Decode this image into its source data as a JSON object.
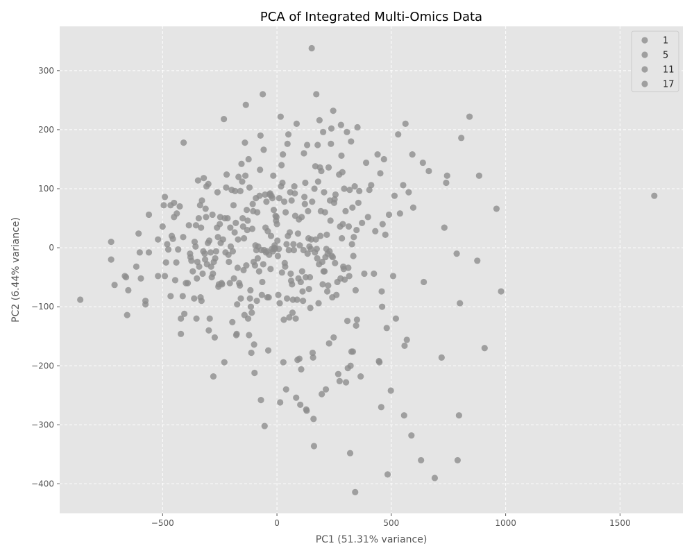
{
  "chart_data": {
    "type": "scatter",
    "title": "PCA of Integrated Multi-Omics Data",
    "xlabel": "PC1 (51.31% variance)",
    "ylabel": "PC2 (6.44% variance)",
    "xlim": [
      -950,
      1775
    ],
    "ylim": [
      -450,
      375
    ],
    "xticks": [
      -500,
      0,
      500,
      1000,
      1500
    ],
    "xtick_labels": [
      "−500",
      "0",
      "500",
      "1000",
      "1500"
    ],
    "yticks": [
      -400,
      -300,
      -200,
      -100,
      0,
      100,
      200,
      300
    ],
    "ytick_labels": [
      "−400",
      "−300",
      "−200",
      "−100",
      "0",
      "100",
      "200",
      "300"
    ],
    "grid": true,
    "legend_position": "top-right",
    "background_color": "#e5e5e5",
    "grid_color": "#ffffff",
    "point_color": "#8c8c8c",
    "legend": [
      "1",
      "5",
      "11",
      "17"
    ],
    "points": [
      [
        -860,
        -88
      ],
      [
        -725,
        10
      ],
      [
        -725,
        -20
      ],
      [
        -710,
        -63
      ],
      [
        -665,
        -48
      ],
      [
        -660,
        -50
      ],
      [
        -655,
        -114
      ],
      [
        -650,
        -72
      ],
      [
        -615,
        -32
      ],
      [
        -600,
        -8
      ],
      [
        -605,
        24
      ],
      [
        -595,
        -52
      ],
      [
        -575,
        -90
      ],
      [
        -575,
        -96
      ],
      [
        -560,
        56
      ],
      [
        -560,
        -8
      ],
      [
        -520,
        14
      ],
      [
        -520,
        -48
      ],
      [
        -500,
        36
      ],
      [
        -495,
        72
      ],
      [
        -490,
        86
      ],
      [
        -490,
        -48
      ],
      [
        -485,
        -25
      ],
      [
        -480,
        6
      ],
      [
        -475,
        -3
      ],
      [
        -465,
        -82
      ],
      [
        -465,
        72
      ],
      [
        -460,
        20
      ],
      [
        -455,
        15
      ],
      [
        -450,
        76
      ],
      [
        -450,
        52
      ],
      [
        -445,
        -55
      ],
      [
        -440,
        -25
      ],
      [
        -438,
        58
      ],
      [
        -432,
        -3
      ],
      [
        -425,
        70
      ],
      [
        -420,
        -120
      ],
      [
        -420,
        -146
      ],
      [
        -412,
        -82
      ],
      [
        -410,
        18
      ],
      [
        -408,
        178
      ],
      [
        -405,
        -112
      ],
      [
        -398,
        -60
      ],
      [
        -390,
        -60
      ],
      [
        -385,
        38
      ],
      [
        -380,
        -10
      ],
      [
        -378,
        -16
      ],
      [
        -374,
        -22
      ],
      [
        -368,
        -40
      ],
      [
        -362,
        -86
      ],
      [
        -360,
        10
      ],
      [
        -356,
        2
      ],
      [
        -354,
        38
      ],
      [
        -352,
        -120
      ],
      [
        -350,
        -52
      ],
      [
        -348,
        -24
      ],
      [
        -345,
        114
      ],
      [
        -342,
        50
      ],
      [
        -340,
        -32
      ],
      [
        -336,
        72
      ],
      [
        -334,
        -84
      ],
      [
        -332,
        34
      ],
      [
        -330,
        -90
      ],
      [
        -328,
        80
      ],
      [
        -325,
        -44
      ],
      [
        -322,
        -6
      ],
      [
        -320,
        118
      ],
      [
        -316,
        -10
      ],
      [
        -314,
        -20
      ],
      [
        -312,
        66
      ],
      [
        -310,
        52
      ],
      [
        -308,
        104
      ],
      [
        -306,
        -28
      ],
      [
        -302,
        8
      ],
      [
        -300,
        108
      ],
      [
        -298,
        -140
      ],
      [
        -296,
        12
      ],
      [
        -294,
        -120
      ],
      [
        -290,
        -8
      ],
      [
        -288,
        -32
      ],
      [
        -285,
        -50
      ],
      [
        -282,
        56
      ],
      [
        -280,
        -44
      ],
      [
        -278,
        -218
      ],
      [
        -276,
        -24
      ],
      [
        -272,
        -152
      ],
      [
        -270,
        -18
      ],
      [
        -266,
        -6
      ],
      [
        -262,
        34
      ],
      [
        -260,
        94
      ],
      [
        -258,
        18
      ],
      [
        -256,
        -66
      ],
      [
        -254,
        -62
      ],
      [
        -250,
        40
      ],
      [
        -248,
        52
      ],
      [
        -246,
        8
      ],
      [
        -242,
        -60
      ],
      [
        -240,
        -62
      ],
      [
        -236,
        14
      ],
      [
        -232,
        218
      ],
      [
        -230,
        -194
      ],
      [
        -228,
        50
      ],
      [
        -225,
        -8
      ],
      [
        -222,
        102
      ],
      [
        -220,
        124
      ],
      [
        -216,
        50
      ],
      [
        -212,
        -12
      ],
      [
        -210,
        -24
      ],
      [
        -206,
        -60
      ],
      [
        -204,
        34
      ],
      [
        -202,
        2
      ],
      [
        -198,
        98
      ],
      [
        -195,
        -126
      ],
      [
        -193,
        -6
      ],
      [
        -190,
        72
      ],
      [
        -188,
        -52
      ],
      [
        -185,
        26
      ],
      [
        -183,
        96
      ],
      [
        -180,
        42
      ],
      [
        -178,
        -148
      ],
      [
        -176,
        -146
      ],
      [
        -174,
        -96
      ],
      [
        -172,
        -34
      ],
      [
        -170,
        14
      ],
      [
        -168,
        120
      ],
      [
        -165,
        -60
      ],
      [
        -162,
        -64
      ],
      [
        -160,
        96
      ],
      [
        -158,
        -86
      ],
      [
        -155,
        142
      ],
      [
        -152,
        112
      ],
      [
        -150,
        50
      ],
      [
        -148,
        36
      ],
      [
        -146,
        -38
      ],
      [
        -144,
        16
      ],
      [
        -142,
        -114
      ],
      [
        -140,
        178
      ],
      [
        -138,
        122
      ],
      [
        -136,
        242
      ],
      [
        -134,
        -30
      ],
      [
        -132,
        64
      ],
      [
        -130,
        30
      ],
      [
        -128,
        46
      ],
      [
        -126,
        -120
      ],
      [
        -124,
        150
      ],
      [
        -122,
        -148
      ],
      [
        -120,
        102
      ],
      [
        -118,
        -86
      ],
      [
        -116,
        -72
      ],
      [
        -114,
        -100
      ],
      [
        -112,
        -178
      ],
      [
        -110,
        -110
      ],
      [
        -108,
        32
      ],
      [
        -106,
        74
      ],
      [
        -104,
        62
      ],
      [
        -102,
        -24
      ],
      [
        -100,
        -164
      ],
      [
        -98,
        -212
      ],
      [
        -96,
        -30
      ],
      [
        -94,
        4
      ],
      [
        -92,
        84
      ],
      [
        -90,
        -4
      ],
      [
        -88,
        -90
      ],
      [
        -86,
        60
      ],
      [
        -84,
        -18
      ],
      [
        -82,
        2
      ],
      [
        -78,
        -40
      ],
      [
        -76,
        88
      ],
      [
        -74,
        132
      ],
      [
        -72,
        190
      ],
      [
        -70,
        -258
      ],
      [
        -68,
        -4
      ],
      [
        -66,
        -80
      ],
      [
        -64,
        -58
      ],
      [
        -62,
        260
      ],
      [
        -60,
        -28
      ],
      [
        -58,
        166
      ],
      [
        -56,
        -4
      ],
      [
        -54,
        -302
      ],
      [
        -52,
        90
      ],
      [
        -50,
        34
      ],
      [
        -48,
        -8
      ],
      [
        -46,
        78
      ],
      [
        -44,
        -6
      ],
      [
        -42,
        -84
      ],
      [
        -40,
        28
      ],
      [
        -38,
        -174
      ],
      [
        -36,
        -84
      ],
      [
        -34,
        -12
      ],
      [
        -32,
        90
      ],
      [
        -30,
        92
      ],
      [
        -28,
        -36
      ],
      [
        -26,
        20
      ],
      [
        -24,
        88
      ],
      [
        -22,
        -2
      ],
      [
        -20,
        84
      ],
      [
        -18,
        -6
      ],
      [
        -16,
        122
      ],
      [
        -14,
        64
      ],
      [
        -12,
        0
      ],
      [
        -10,
        4
      ],
      [
        -8,
        -2
      ],
      [
        -6,
        54
      ],
      [
        -4,
        46
      ],
      [
        -2,
        52
      ],
      [
        0,
        40
      ],
      [
        2,
        12
      ],
      [
        4,
        -14
      ],
      [
        6,
        -80
      ],
      [
        8,
        -2
      ],
      [
        10,
        84
      ],
      [
        12,
        -94
      ],
      [
        14,
        -262
      ],
      [
        16,
        222
      ],
      [
        18,
        104
      ],
      [
        20,
        140
      ],
      [
        22,
        -42
      ],
      [
        24,
        110
      ],
      [
        26,
        158
      ],
      [
        28,
        -194
      ],
      [
        30,
        -122
      ],
      [
        32,
        78
      ],
      [
        34,
        -26
      ],
      [
        36,
        -32
      ],
      [
        38,
        60
      ],
      [
        40,
        -240
      ],
      [
        42,
        6
      ],
      [
        44,
        -86
      ],
      [
        46,
        176
      ],
      [
        48,
        20
      ],
      [
        50,
        192
      ],
      [
        52,
        -4
      ],
      [
        54,
        -118
      ],
      [
        56,
        26
      ],
      [
        58,
        94
      ],
      [
        60,
        -44
      ],
      [
        62,
        -56
      ],
      [
        64,
        80
      ],
      [
        66,
        -62
      ],
      [
        68,
        -110
      ],
      [
        70,
        -88
      ],
      [
        72,
        6
      ],
      [
        74,
        -4
      ],
      [
        76,
        104
      ],
      [
        78,
        92
      ],
      [
        80,
        54
      ],
      [
        82,
        -120
      ],
      [
        84,
        -254
      ],
      [
        86,
        210
      ],
      [
        88,
        -88
      ],
      [
        90,
        -190
      ],
      [
        92,
        24
      ],
      [
        94,
        -52
      ],
      [
        96,
        48
      ],
      [
        98,
        -188
      ],
      [
        100,
        4
      ],
      [
        102,
        -266
      ],
      [
        104,
        -58
      ],
      [
        106,
        -206
      ],
      [
        108,
        52
      ],
      [
        110,
        -40
      ],
      [
        112,
        -74
      ],
      [
        114,
        -90
      ],
      [
        116,
        -4
      ],
      [
        118,
        160
      ],
      [
        120,
        86
      ],
      [
        122,
        74
      ],
      [
        124,
        110
      ],
      [
        126,
        -50
      ],
      [
        128,
        -274
      ],
      [
        130,
        -276
      ],
      [
        132,
        174
      ],
      [
        134,
        -10
      ],
      [
        136,
        62
      ],
      [
        138,
        16
      ],
      [
        140,
        -70
      ],
      [
        142,
        2
      ],
      [
        144,
        -50
      ],
      [
        146,
        -102
      ],
      [
        148,
        -2
      ],
      [
        150,
        14
      ],
      [
        152,
        338
      ],
      [
        154,
        78
      ],
      [
        156,
        -178
      ],
      [
        158,
        -186
      ],
      [
        160,
        -290
      ],
      [
        162,
        -336
      ],
      [
        164,
        100
      ],
      [
        166,
        -8
      ],
      [
        168,
        138
      ],
      [
        170,
        14
      ],
      [
        172,
        260
      ],
      [
        174,
        -2
      ],
      [
        176,
        -18
      ],
      [
        178,
        174
      ],
      [
        180,
        112
      ],
      [
        182,
        -94
      ],
      [
        184,
        -28
      ],
      [
        186,
        216
      ],
      [
        188,
        136
      ],
      [
        190,
        20
      ],
      [
        192,
        62
      ],
      [
        194,
        130
      ],
      [
        196,
        -248
      ],
      [
        198,
        -24
      ],
      [
        200,
        -62
      ],
      [
        202,
        196
      ],
      [
        204,
        -40
      ],
      [
        206,
        94
      ],
      [
        208,
        -40
      ],
      [
        210,
        60
      ],
      [
        212,
        -16
      ],
      [
        214,
        -240
      ],
      [
        216,
        -2
      ],
      [
        218,
        22
      ],
      [
        220,
        -74
      ],
      [
        222,
        -10
      ],
      [
        224,
        -64
      ],
      [
        226,
        136
      ],
      [
        228,
        -162
      ],
      [
        230,
        -6
      ],
      [
        232,
        80
      ],
      [
        234,
        46
      ],
      [
        236,
        176
      ],
      [
        238,
        202
      ],
      [
        240,
        -14
      ],
      [
        242,
        -84
      ],
      [
        244,
        -16
      ],
      [
        246,
        232
      ],
      [
        248,
        -152
      ],
      [
        250,
        76
      ],
      [
        252,
        82
      ],
      [
        254,
        -26
      ],
      [
        256,
        90
      ],
      [
        260,
        -80
      ],
      [
        264,
        -58
      ],
      [
        268,
        -214
      ],
      [
        272,
        124
      ],
      [
        274,
        -226
      ],
      [
        276,
        36
      ],
      [
        278,
        -52
      ],
      [
        280,
        208
      ],
      [
        282,
        156
      ],
      [
        284,
        16
      ],
      [
        286,
        128
      ],
      [
        288,
        40
      ],
      [
        290,
        -32
      ],
      [
        292,
        -36
      ],
      [
        294,
        100
      ],
      [
        296,
        -54
      ],
      [
        300,
        62
      ],
      [
        302,
        -228
      ],
      [
        306,
        196
      ],
      [
        308,
        -124
      ],
      [
        310,
        -204
      ],
      [
        312,
        -34
      ],
      [
        314,
        36
      ],
      [
        316,
        -48
      ],
      [
        318,
        98
      ],
      [
        320,
        -348
      ],
      [
        322,
        -200
      ],
      [
        324,
        180
      ],
      [
        326,
        -176
      ],
      [
        328,
        6
      ],
      [
        330,
        68
      ],
      [
        332,
        -176
      ],
      [
        334,
        -14
      ],
      [
        336,
        18
      ],
      [
        340,
        104
      ],
      [
        342,
        -414
      ],
      [
        344,
        -72
      ],
      [
        346,
        -132
      ],
      [
        348,
        30
      ],
      [
        350,
        -122
      ],
      [
        352,
        204
      ],
      [
        356,
        76
      ],
      [
        360,
        96
      ],
      [
        366,
        -218
      ],
      [
        372,
        42
      ],
      [
        382,
        -44
      ],
      [
        390,
        144
      ],
      [
        398,
        52
      ],
      [
        404,
        98
      ],
      [
        412,
        106
      ],
      [
        424,
        -44
      ],
      [
        430,
        28
      ],
      [
        440,
        158
      ],
      [
        446,
        -192
      ],
      [
        448,
        -194
      ],
      [
        452,
        126
      ],
      [
        456,
        -270
      ],
      [
        458,
        -74
      ],
      [
        460,
        -100
      ],
      [
        462,
        40
      ],
      [
        468,
        150
      ],
      [
        474,
        22
      ],
      [
        480,
        -136
      ],
      [
        484,
        -384
      ],
      [
        490,
        56
      ],
      [
        498,
        -242
      ],
      [
        508,
        -48
      ],
      [
        514,
        88
      ],
      [
        520,
        -120
      ],
      [
        530,
        192
      ],
      [
        538,
        58
      ],
      [
        552,
        106
      ],
      [
        556,
        -284
      ],
      [
        558,
        -166
      ],
      [
        562,
        210
      ],
      [
        568,
        -156
      ],
      [
        576,
        94
      ],
      [
        588,
        -318
      ],
      [
        592,
        158
      ],
      [
        596,
        68
      ],
      [
        630,
        -360
      ],
      [
        638,
        144
      ],
      [
        642,
        -58
      ],
      [
        664,
        130
      ],
      [
        690,
        -390
      ],
      [
        720,
        -186
      ],
      [
        732,
        34
      ],
      [
        740,
        110
      ],
      [
        744,
        122
      ],
      [
        786,
        -10
      ],
      [
        790,
        -360
      ],
      [
        796,
        -284
      ],
      [
        800,
        -94
      ],
      [
        806,
        186
      ],
      [
        842,
        222
      ],
      [
        876,
        -22
      ],
      [
        884,
        122
      ],
      [
        908,
        -170
      ],
      [
        960,
        66
      ],
      [
        980,
        -74
      ],
      [
        1650,
        88
      ]
    ]
  }
}
